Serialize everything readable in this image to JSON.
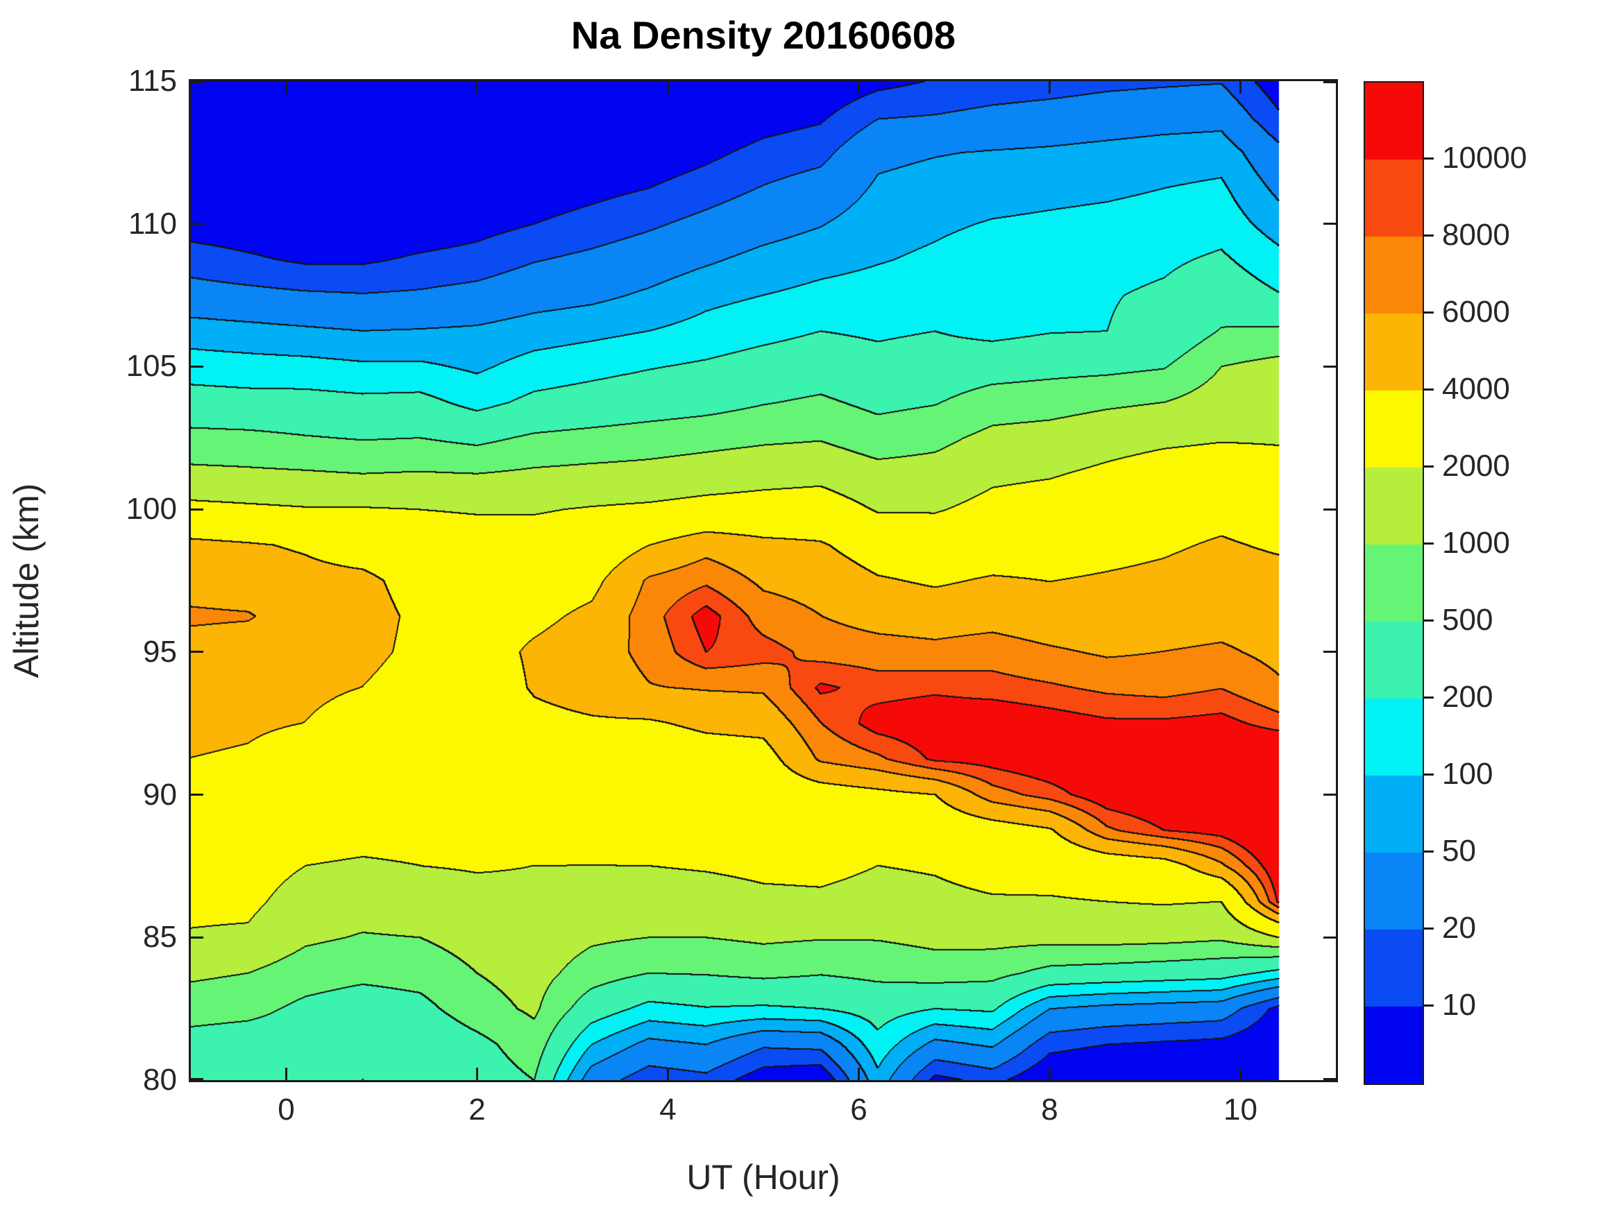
{
  "title": "Na Density 20160608",
  "axes": {
    "xlabel": "UT (Hour)",
    "ylabel": "Altitude (km)"
  },
  "chart_data": {
    "type": "heatmap",
    "title": "Na Density 20160608",
    "xlabel": "UT (Hour)",
    "ylabel": "Altitude (km)",
    "x_axis_range": [
      -1,
      11
    ],
    "data_x_range": [
      -1.0,
      10.4
    ],
    "y_axis_range": [
      80,
      115
    ],
    "x_ticks": [
      0,
      2,
      4,
      6,
      8,
      10
    ],
    "y_ticks": [
      80,
      85,
      90,
      95,
      100,
      105,
      110,
      115
    ],
    "grid_on": false,
    "legend_position": "colorbar-right",
    "colorbar": {
      "levels": [
        10,
        20,
        50,
        100,
        200,
        500,
        1000,
        2000,
        4000,
        6000,
        8000,
        10000
      ],
      "labels": [
        "10",
        "20",
        "50",
        "100",
        "200",
        "500",
        "1000",
        "2000",
        "4000",
        "6000",
        "8000",
        "10000"
      ],
      "colors": [
        "#0104F0",
        "#0A4BF3",
        "#0985F5",
        "#00AFF5",
        "#00F2F5",
        "#3BF2AE",
        "#65F476",
        "#B5EE3C",
        "#FCF800",
        "#FCB405",
        "#FB8708",
        "#F84A10",
        "#F50A08"
      ]
    },
    "contour_line_color": "#111111",
    "no_data_color": "#ffffff",
    "grid": {
      "x_hours": [
        -1.0,
        -0.4,
        0.2,
        0.8,
        1.4,
        2.0,
        2.6,
        3.2,
        3.8,
        4.4,
        5.0,
        5.6,
        6.2,
        6.8,
        7.4,
        8.0,
        8.6,
        9.2,
        9.8,
        10.4
      ],
      "alt_km_desc": [
        115,
        113.75,
        112.5,
        111.25,
        110,
        108.75,
        107.5,
        106.25,
        105,
        103.75,
        102.5,
        101.25,
        100,
        98.75,
        97.5,
        96.25,
        95,
        93.75,
        92.5,
        91.25,
        90,
        88.75,
        87.5,
        86.25,
        85,
        83.75,
        82.5,
        81.25,
        80
      ],
      "log10_density_columns": [
        [
          0.3,
          0.4,
          0.5,
          0.65,
          0.85,
          1.15,
          1.45,
          1.85,
          2.15,
          2.45,
          2.8,
          3.07,
          3.38,
          3.65,
          3.72,
          3.8,
          3.72,
          3.68,
          3.65,
          3.6,
          3.52,
          3.45,
          3.42,
          3.36,
          3.28,
          3.05,
          2.85,
          2.55,
          2.48
        ],
        [
          0.25,
          0.35,
          0.45,
          0.6,
          0.8,
          1.05,
          1.4,
          1.8,
          2.12,
          2.42,
          2.78,
          3.05,
          3.35,
          3.62,
          3.7,
          3.79,
          3.7,
          3.66,
          3.63,
          3.58,
          3.5,
          3.44,
          3.42,
          3.36,
          3.26,
          3.0,
          2.8,
          2.5,
          2.45
        ],
        [
          0.2,
          0.3,
          0.42,
          0.58,
          0.75,
          0.95,
          1.35,
          1.75,
          2.1,
          2.42,
          2.72,
          3.03,
          3.32,
          3.58,
          3.66,
          3.7,
          3.68,
          3.64,
          3.6,
          3.5,
          3.45,
          3.38,
          3.3,
          3.18,
          3.05,
          2.85,
          2.62,
          2.5,
          2.45
        ],
        [
          0.2,
          0.3,
          0.4,
          0.55,
          0.72,
          0.95,
          1.32,
          1.7,
          2.05,
          2.38,
          2.68,
          3.0,
          3.32,
          3.5,
          3.65,
          3.68,
          3.66,
          3.6,
          3.52,
          3.46,
          3.42,
          3.36,
          3.28,
          3.12,
          2.98,
          2.78,
          2.52,
          2.35,
          2.3
        ],
        [
          0.22,
          0.33,
          0.45,
          0.6,
          0.78,
          1.05,
          1.35,
          1.72,
          2.05,
          2.4,
          2.7,
          3.02,
          3.3,
          3.45,
          3.52,
          3.56,
          3.55,
          3.5,
          3.46,
          3.42,
          3.4,
          3.36,
          3.3,
          3.16,
          3.0,
          2.82,
          2.6,
          2.4,
          2.38
        ],
        [
          0.25,
          0.38,
          0.5,
          0.68,
          0.88,
          1.12,
          1.42,
          1.75,
          1.95,
          2.2,
          2.62,
          3.0,
          3.28,
          3.42,
          3.48,
          3.52,
          3.52,
          3.48,
          3.44,
          3.42,
          3.4,
          3.38,
          3.32,
          3.22,
          3.12,
          3.0,
          2.88,
          2.6,
          2.5
        ],
        [
          0.3,
          0.45,
          0.6,
          0.8,
          1.0,
          1.28,
          1.55,
          1.85,
          2.12,
          2.38,
          2.75,
          3.05,
          3.28,
          3.42,
          3.5,
          3.56,
          3.63,
          3.62,
          3.55,
          3.46,
          3.42,
          3.38,
          3.3,
          3.25,
          3.2,
          3.12,
          3.05,
          2.88,
          2.7
        ],
        [
          0.35,
          0.5,
          0.68,
          0.9,
          1.12,
          1.38,
          1.62,
          1.92,
          2.2,
          2.45,
          2.8,
          3.08,
          3.32,
          3.45,
          3.55,
          3.64,
          3.7,
          3.68,
          3.58,
          3.45,
          3.35,
          3.34,
          3.3,
          3.2,
          3.05,
          2.85,
          2.5,
          2.0,
          1.5
        ],
        [
          0.42,
          0.58,
          0.78,
          1.0,
          1.25,
          1.5,
          1.75,
          2.0,
          2.28,
          2.52,
          2.85,
          3.1,
          3.35,
          3.6,
          3.8,
          3.85,
          3.82,
          3.77,
          3.58,
          3.45,
          3.42,
          3.38,
          3.3,
          3.18,
          3.0,
          2.7,
          2.2,
          1.6,
          1.1
        ],
        [
          0.5,
          0.68,
          0.92,
          1.15,
          1.4,
          1.65,
          1.92,
          2.1,
          2.35,
          2.58,
          2.9,
          3.15,
          3.4,
          3.72,
          3.88,
          4.05,
          4.0,
          3.79,
          3.64,
          3.5,
          3.44,
          3.4,
          3.32,
          3.2,
          3.0,
          2.72,
          2.28,
          1.7,
          1.2
        ],
        [
          0.6,
          0.85,
          1.1,
          1.32,
          1.55,
          1.8,
          2.0,
          2.2,
          2.45,
          2.68,
          2.95,
          3.2,
          3.42,
          3.65,
          3.75,
          3.85,
          3.95,
          3.8,
          3.66,
          3.52,
          3.46,
          3.4,
          3.35,
          3.25,
          3.05,
          2.78,
          2.25,
          1.35,
          0.8
        ],
        [
          0.72,
          0.95,
          1.2,
          1.45,
          1.68,
          1.9,
          2.08,
          2.3,
          2.52,
          2.75,
          2.98,
          3.22,
          3.45,
          3.62,
          3.72,
          3.78,
          3.86,
          4.02,
          3.9,
          3.8,
          3.5,
          3.42,
          3.36,
          3.26,
          3.02,
          2.72,
          2.3,
          1.4,
          0.7
        ],
        [
          0.9,
          1.28,
          1.62,
          1.75,
          1.88,
          1.98,
          2.12,
          2.25,
          2.42,
          2.62,
          2.85,
          3.1,
          3.28,
          3.5,
          3.62,
          3.72,
          3.84,
          3.96,
          4.05,
          3.88,
          3.55,
          3.42,
          3.3,
          3.22,
          3.02,
          2.78,
          2.45,
          2.2,
          1.9
        ],
        [
          1.02,
          1.32,
          1.68,
          1.82,
          1.95,
          2.05,
          2.15,
          2.3,
          2.48,
          2.68,
          2.92,
          3.12,
          3.28,
          3.48,
          3.58,
          3.7,
          3.82,
          3.98,
          4.08,
          4.02,
          3.6,
          3.45,
          3.32,
          3.25,
          3.08,
          2.85,
          2.3,
          1.6,
          0.9
        ],
        [
          1.1,
          1.4,
          1.72,
          1.88,
          2.02,
          2.15,
          2.28,
          2.2,
          2.55,
          2.85,
          3.08,
          3.25,
          3.38,
          3.5,
          3.62,
          3.72,
          3.85,
          3.95,
          4.1,
          4.05,
          3.85,
          3.5,
          3.38,
          3.28,
          3.1,
          2.8,
          2.35,
          1.75,
          1.1
        ],
        [
          1.15,
          1.45,
          1.75,
          1.92,
          2.05,
          2.18,
          2.25,
          2.28,
          2.6,
          2.88,
          3.12,
          3.28,
          3.42,
          3.52,
          3.6,
          3.68,
          3.8,
          3.92,
          4.06,
          4.1,
          3.95,
          3.58,
          3.4,
          3.28,
          3.1,
          2.6,
          1.7,
          1.1,
          0.7
        ],
        [
          1.22,
          1.5,
          1.8,
          1.95,
          2.08,
          2.2,
          2.28,
          2.3,
          2.62,
          2.95,
          3.2,
          3.35,
          3.45,
          3.55,
          3.62,
          3.66,
          3.76,
          3.88,
          4.02,
          4.12,
          4.08,
          3.88,
          3.45,
          3.3,
          3.12,
          2.55,
          1.6,
          1.0,
          0.6
        ],
        [
          1.25,
          1.55,
          1.85,
          2.0,
          2.12,
          2.25,
          2.35,
          2.42,
          2.68,
          3.0,
          3.25,
          3.42,
          3.52,
          3.58,
          3.64,
          3.7,
          3.78,
          3.86,
          4.02,
          4.1,
          4.12,
          4.0,
          3.5,
          3.32,
          3.1,
          2.5,
          1.55,
          0.95,
          0.55
        ],
        [
          1.28,
          1.58,
          1.88,
          2.05,
          2.18,
          2.35,
          2.52,
          2.72,
          3.0,
          3.15,
          3.28,
          3.45,
          3.55,
          3.62,
          3.68,
          3.72,
          3.8,
          3.9,
          4.04,
          4.15,
          4.18,
          4.05,
          3.75,
          3.3,
          3.05,
          2.45,
          1.5,
          0.9,
          0.5
        ],
        [
          0.8,
          1.05,
          1.4,
          1.62,
          1.85,
          2.1,
          2.32,
          2.75,
          3.1,
          3.2,
          3.28,
          3.38,
          3.5,
          3.58,
          3.66,
          3.7,
          3.74,
          3.8,
          3.95,
          4.2,
          4.25,
          4.2,
          4.1,
          4.02,
          3.3,
          2.2,
          0.9,
          0.7,
          0.6
        ]
      ]
    }
  }
}
